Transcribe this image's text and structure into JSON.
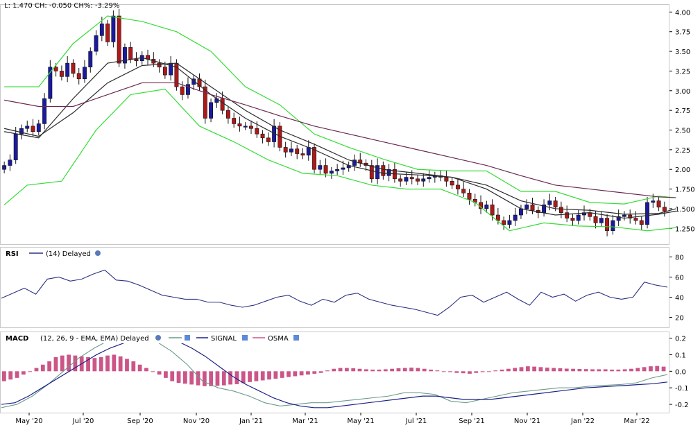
{
  "header": {
    "quote": "L: 1.470 CH: -0.050 CH%: -3.29%"
  },
  "price_panel": {
    "y_ticks": [
      "4.00",
      "3.75",
      "3.50",
      "3.25",
      "3.00",
      "2.75",
      "2.50",
      "2.25",
      "2.00",
      "1.750",
      "1.500",
      "1.250"
    ]
  },
  "rsi_panel": {
    "label": "RSI",
    "legend": "(14) Delayed",
    "y_ticks": [
      "80",
      "60",
      "40",
      "20"
    ]
  },
  "macd_panel": {
    "label": "MACD",
    "legend": "(12, 26, 9 - EMA, EMA) Delayed",
    "signal_label": "SIGNAL",
    "osma_label": "OSMA",
    "y_ticks": [
      "0.2",
      "0.1",
      "0.0",
      "-0.1",
      "-0.2"
    ]
  },
  "x_ticks": [
    "May '20",
    "Jul '20",
    "Sep '20",
    "Nov '20",
    "Jan '21",
    "Mar '21",
    "May '21",
    "Jul '21",
    "Sep '21",
    "Nov '21",
    "Jan '22",
    "Mar '22"
  ],
  "colors": {
    "up": "#1a1aa0",
    "down": "#b01818",
    "bollinger": "#33dd33",
    "ma_short": "#2a2a2a",
    "ma_long": "#6a2850",
    "rsi": "#283080",
    "macd": "#6a9a8a",
    "signal": "#1c2088",
    "osma": "#cc5588"
  },
  "chart_data": [
    {
      "type": "candlestick",
      "panel": "price",
      "yrange": [
        1.05,
        4.1
      ],
      "y_ticks": [
        4.0,
        3.75,
        3.5,
        3.25,
        3.0,
        2.75,
        2.5,
        2.25,
        2.0,
        1.75,
        1.5,
        1.25
      ],
      "closes": [
        2.05,
        2.12,
        2.45,
        2.52,
        2.55,
        2.48,
        2.58,
        2.9,
        3.3,
        3.25,
        3.18,
        3.35,
        3.22,
        3.15,
        3.3,
        3.5,
        3.7,
        3.85,
        3.62,
        3.95,
        3.35,
        3.55,
        3.4,
        3.38,
        3.45,
        3.4,
        3.35,
        3.3,
        3.2,
        3.35,
        3.05,
        2.95,
        3.08,
        3.15,
        3.05,
        2.65,
        2.85,
        2.9,
        2.75,
        2.65,
        2.58,
        2.55,
        2.55,
        2.52,
        2.45,
        2.4,
        2.35,
        2.55,
        2.28,
        2.22,
        2.26,
        2.2,
        2.18,
        2.28,
        2.0,
        2.05,
        1.95,
        1.98,
        2.0,
        2.02,
        2.05,
        2.12,
        2.08,
        2.05,
        1.88,
        2.05,
        1.92,
        2.0,
        1.88,
        1.85,
        1.9,
        1.88,
        1.85,
        1.88,
        1.9,
        1.92,
        1.9,
        1.85,
        1.8,
        1.75,
        1.7,
        1.62,
        1.58,
        1.5,
        1.55,
        1.42,
        1.35,
        1.3,
        1.35,
        1.42,
        1.5,
        1.55,
        1.48,
        1.45,
        1.55,
        1.6,
        1.52,
        1.45,
        1.38,
        1.35,
        1.42,
        1.45,
        1.4,
        1.32,
        1.38,
        1.22,
        1.35,
        1.4,
        1.42,
        1.38,
        1.35,
        1.3,
        1.58,
        1.6,
        1.52,
        1.47
      ],
      "series": [
        {
          "name": "",
          "role": "bb_upper",
          "points": [
            [
              0,
              3.05
            ],
            [
              6,
              3.05
            ],
            [
              12,
              3.6
            ],
            [
              18,
              3.95
            ],
            [
              24,
              3.88
            ],
            [
              30,
              3.75
            ],
            [
              36,
              3.5
            ],
            [
              42,
              3.05
            ],
            [
              48,
              2.82
            ],
            [
              54,
              2.45
            ],
            [
              60,
              2.28
            ],
            [
              66,
              2.13
            ],
            [
              72,
              2.0
            ],
            [
              78,
              1.98
            ],
            [
              84,
              1.98
            ],
            [
              90,
              1.72
            ],
            [
              96,
              1.72
            ],
            [
              102,
              1.58
            ],
            [
              108,
              1.56
            ],
            [
              114,
              1.66
            ],
            [
              117,
              1.64
            ]
          ]
        },
        {
          "name": "",
          "role": "bb_lower",
          "points": [
            [
              0,
              1.55
            ],
            [
              4,
              1.8
            ],
            [
              10,
              1.85
            ],
            [
              16,
              2.5
            ],
            [
              22,
              2.95
            ],
            [
              28,
              3.02
            ],
            [
              34,
              2.55
            ],
            [
              40,
              2.35
            ],
            [
              46,
              2.12
            ],
            [
              52,
              1.95
            ],
            [
              58,
              1.92
            ],
            [
              64,
              1.8
            ],
            [
              70,
              1.75
            ],
            [
              76,
              1.75
            ],
            [
              82,
              1.58
            ],
            [
              88,
              1.22
            ],
            [
              94,
              1.32
            ],
            [
              100,
              1.28
            ],
            [
              106,
              1.27
            ],
            [
              112,
              1.22
            ],
            [
              117,
              1.26
            ]
          ]
        },
        {
          "name": "",
          "role": "ma_short",
          "points": [
            [
              0,
              2.48
            ],
            [
              6,
              2.4
            ],
            [
              12,
              2.9
            ],
            [
              18,
              3.35
            ],
            [
              24,
              3.42
            ],
            [
              30,
              3.3
            ],
            [
              36,
              2.95
            ],
            [
              42,
              2.65
            ],
            [
              48,
              2.42
            ],
            [
              54,
              2.25
            ],
            [
              60,
              2.05
            ],
            [
              66,
              1.95
            ],
            [
              72,
              1.93
            ],
            [
              78,
              1.9
            ],
            [
              84,
              1.75
            ],
            [
              90,
              1.5
            ],
            [
              96,
              1.42
            ],
            [
              102,
              1.45
            ],
            [
              108,
              1.38
            ],
            [
              114,
              1.43
            ],
            [
              117,
              1.47
            ]
          ]
        },
        {
          "name": "",
          "role": "ma_mid",
          "points": [
            [
              0,
              2.52
            ],
            [
              6,
              2.42
            ],
            [
              12,
              2.72
            ],
            [
              18,
              3.1
            ],
            [
              24,
              3.32
            ],
            [
              30,
              3.35
            ],
            [
              36,
              3.05
            ],
            [
              42,
              2.75
            ],
            [
              48,
              2.5
            ],
            [
              54,
              2.32
            ],
            [
              60,
              2.12
            ],
            [
              66,
              2.0
            ],
            [
              72,
              1.95
            ],
            [
              78,
              1.9
            ],
            [
              84,
              1.8
            ],
            [
              90,
              1.6
            ],
            [
              96,
              1.5
            ],
            [
              102,
              1.48
            ],
            [
              108,
              1.43
            ],
            [
              114,
              1.44
            ],
            [
              117,
              1.5
            ]
          ]
        },
        {
          "name": "",
          "role": "ma_long",
          "points": [
            [
              0,
              2.88
            ],
            [
              6,
              2.8
            ],
            [
              12,
              2.8
            ],
            [
              18,
              2.95
            ],
            [
              24,
              3.1
            ],
            [
              30,
              3.1
            ],
            [
              36,
              2.95
            ],
            [
              42,
              2.82
            ],
            [
              48,
              2.68
            ],
            [
              54,
              2.55
            ],
            [
              60,
              2.45
            ],
            [
              66,
              2.35
            ],
            [
              72,
              2.25
            ],
            [
              78,
              2.15
            ],
            [
              84,
              2.05
            ],
            [
              90,
              1.92
            ],
            [
              96,
              1.8
            ],
            [
              102,
              1.75
            ],
            [
              108,
              1.7
            ],
            [
              114,
              1.65
            ],
            [
              117,
              1.64
            ]
          ]
        }
      ]
    },
    {
      "type": "line",
      "panel": "rsi",
      "yrange": [
        10,
        90
      ],
      "y_ticks": [
        80,
        60,
        40,
        20
      ],
      "series": [
        {
          "name": "(14) Delayed",
          "values": [
            39,
            44,
            49,
            43,
            58,
            60,
            56,
            58,
            63,
            67,
            57,
            56,
            52,
            47,
            42,
            40,
            38,
            38,
            35,
            35,
            32,
            30,
            32,
            36,
            40,
            42,
            36,
            32,
            38,
            35,
            42,
            44,
            38,
            35,
            32,
            30,
            28,
            25,
            22,
            30,
            40,
            42,
            35,
            40,
            45,
            38,
            32,
            45,
            40,
            43,
            36,
            42,
            45,
            40,
            38,
            40,
            55,
            52,
            50
          ]
        }
      ]
    },
    {
      "type": "bar",
      "panel": "macd",
      "yrange": [
        -0.25,
        0.24
      ],
      "y_ticks": [
        0.2,
        0.1,
        0.0,
        -0.1,
        -0.2
      ],
      "series": [
        {
          "name": "OSMA",
          "values": [
            -0.06,
            -0.05,
            -0.04,
            -0.02,
            0.0,
            0.02,
            0.04,
            0.06,
            0.085,
            0.095,
            0.1,
            0.095,
            0.09,
            0.085,
            0.08,
            0.085,
            0.095,
            0.1,
            0.09,
            0.075,
            0.06,
            0.04,
            0.02,
            0.0,
            -0.02,
            -0.04,
            -0.06,
            -0.07,
            -0.075,
            -0.08,
            -0.085,
            -0.09,
            -0.09,
            -0.088,
            -0.085,
            -0.08,
            -0.078,
            -0.072,
            -0.065,
            -0.06,
            -0.055,
            -0.05,
            -0.045,
            -0.04,
            -0.035,
            -0.03,
            -0.025,
            -0.02,
            -0.015,
            -0.01,
            0.005,
            0.015,
            0.02,
            0.02,
            0.018,
            0.015,
            0.012,
            0.01,
            0.01,
            0.012,
            0.015,
            0.018,
            0.02,
            0.022,
            0.02,
            0.015,
            0.01,
            0.005,
            0.0,
            -0.005,
            -0.01,
            -0.012,
            -0.015,
            -0.01,
            -0.005,
            0.0,
            0.005,
            0.01,
            0.015,
            0.02,
            0.025,
            0.03,
            0.028,
            0.025,
            0.022,
            0.02,
            0.018,
            0.016,
            0.015,
            0.014,
            0.013,
            0.012,
            0.012,
            0.012,
            0.01,
            0.01,
            0.012,
            0.015,
            0.02,
            0.025,
            0.03,
            0.032,
            0.028
          ]
        },
        {
          "name": "SIGNAL",
          "values": [
            -0.2,
            -0.19,
            -0.15,
            -0.1,
            -0.05,
            0.0,
            0.05,
            0.1,
            0.14,
            0.17,
            0.19,
            0.2,
            0.2,
            0.18,
            0.14,
            0.09,
            0.03,
            -0.03,
            -0.08,
            -0.12,
            -0.16,
            -0.19,
            -0.21,
            -0.22,
            -0.22,
            -0.21,
            -0.2,
            -0.19,
            -0.18,
            -0.17,
            -0.16,
            -0.15,
            -0.15,
            -0.16,
            -0.17,
            -0.17,
            -0.17,
            -0.16,
            -0.15,
            -0.14,
            -0.13,
            -0.12,
            -0.11,
            -0.1,
            -0.095,
            -0.09,
            -0.085,
            -0.08,
            -0.075,
            -0.065
          ]
        },
        {
          "name": "",
          "role": "macd",
          "values": [
            -0.22,
            -0.2,
            -0.15,
            -0.08,
            0.0,
            0.08,
            0.14,
            0.19,
            0.2,
            0.2,
            0.18,
            0.12,
            0.04,
            -0.06,
            -0.1,
            -0.12,
            -0.15,
            -0.19,
            -0.21,
            -0.2,
            -0.19,
            -0.19,
            -0.18,
            -0.17,
            -0.16,
            -0.15,
            -0.13,
            -0.13,
            -0.14,
            -0.18,
            -0.19,
            -0.17,
            -0.15,
            -0.13,
            -0.12,
            -0.11,
            -0.1,
            -0.1,
            -0.09,
            -0.085,
            -0.08,
            -0.07,
            -0.04,
            -0.02
          ]
        }
      ]
    }
  ]
}
